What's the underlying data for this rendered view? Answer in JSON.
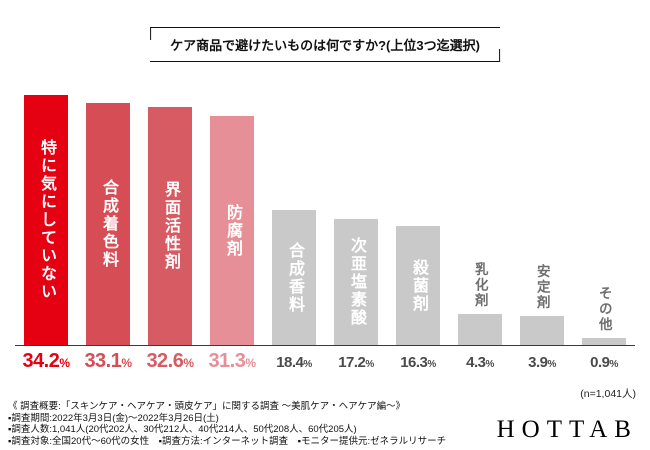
{
  "title": "ケア商品で避けたいものは何ですか?(上位3つ迄選択)",
  "chart_data": {
    "type": "bar",
    "title": "ケア商品で避けたいものは何ですか?(上位3つ迄選択)",
    "categories": [
      "特に気にしていない",
      "合成着色料",
      "界面活性剤",
      "防腐剤",
      "合成香料",
      "次亜塩素酸",
      "殺菌剤",
      "乳化剤",
      "安定剤",
      "その他"
    ],
    "values": [
      34.2,
      33.1,
      32.6,
      31.3,
      18.4,
      17.2,
      16.3,
      4.3,
      3.9,
      0.9
    ],
    "value_labels": [
      "34.2%",
      "33.1%",
      "32.6%",
      "31.3%",
      "18.4%",
      "17.2%",
      "16.3%",
      "4.3%",
      "3.9%",
      "0.9%"
    ],
    "colors": [
      "#e50012",
      "#d64d55",
      "#d65b63",
      "#e68f96",
      "#c9c9c9",
      "#c9c9c9",
      "#c9c9c9",
      "#c9c9c9",
      "#c9c9c9",
      "#c9c9c9"
    ],
    "value_colors": [
      "#e50012",
      "#d64d55",
      "#d65b63",
      "#e68f96",
      "#4b4b4b",
      "#4b4b4b",
      "#4b4b4b",
      "#4b4b4b",
      "#4b4b4b",
      "#4b4b4b"
    ],
    "ylim": [
      0,
      36
    ],
    "xlabel": "",
    "ylabel": "",
    "grid": false,
    "legend": "none"
  },
  "sample_note": "(n=1,041人)",
  "footer": {
    "line1": "《 調査概要:「スキンケア・ヘアケア・頭皮ケア」に関する調査 〜美肌ケア・ヘアケア編〜》",
    "line2": "▪調査期間:2022年3月3日(金)〜2022年3月26日(土)",
    "line3": "▪調査人数:1,041人(20代202人、30代212人、40代214人、50代208人、60代205人)",
    "line4": "▪調査対象:全国20代〜60代の女性　▪調査方法:インターネット調査　▪モニター提供元:ゼネラルリサーチ"
  },
  "logo_text": "HOTTAB"
}
